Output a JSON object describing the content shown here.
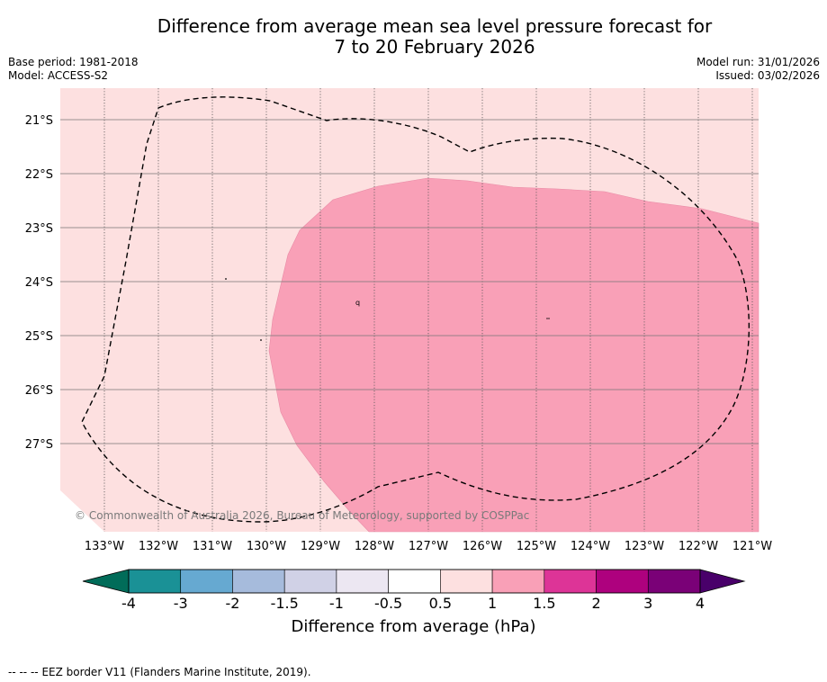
{
  "title": {
    "line1": "Difference from average mean sea level pressure forecast for",
    "line2": "7 to 20 February 2026"
  },
  "meta": {
    "base_period": "Base period: 1981-2018",
    "model": "Model: ACCESS-S2",
    "model_run": "Model run: 31/01/2026",
    "issued": "Issued: 03/02/2026"
  },
  "map": {
    "longitude_labels": [
      "133°W",
      "132°W",
      "131°W",
      "130°W",
      "129°W",
      "128°W",
      "127°W",
      "126°W",
      "125°W",
      "124°W",
      "123°W",
      "122°W",
      "121°W"
    ],
    "latitude_labels": [
      "21°S",
      "22°S",
      "23°S",
      "24°S",
      "25°S",
      "26°S",
      "27°S"
    ],
    "copyright": "© Commonwealth of Australia 2026, Bureau of Meteorology, supported by COSPPac",
    "colors": {
      "background_band": "#fde0e0",
      "high_band": "#f9a0b7",
      "grid": "#555555"
    }
  },
  "colorbar": {
    "ticks": [
      "-4",
      "-3",
      "-2",
      "-1.5",
      "-1",
      "-0.5",
      "0.5",
      "1",
      "1.5",
      "2",
      "3",
      "4"
    ],
    "colors": [
      "#1a9196",
      "#66a9d1",
      "#a6bbdc",
      "#d0d1e6",
      "#ece7f2",
      "#ffffff",
      "#fde0e0",
      "#f9a0b7",
      "#dd3497",
      "#ae017e",
      "#7a0177"
    ],
    "low_extend_color": "#016c59",
    "high_extend_color": "#49006a",
    "label": "Difference from average (hPa)"
  },
  "footer": {
    "legend_symbol": "-- -- --",
    "legend_text": "EEZ border V11 (Flanders Marine Institute, 2019)."
  }
}
